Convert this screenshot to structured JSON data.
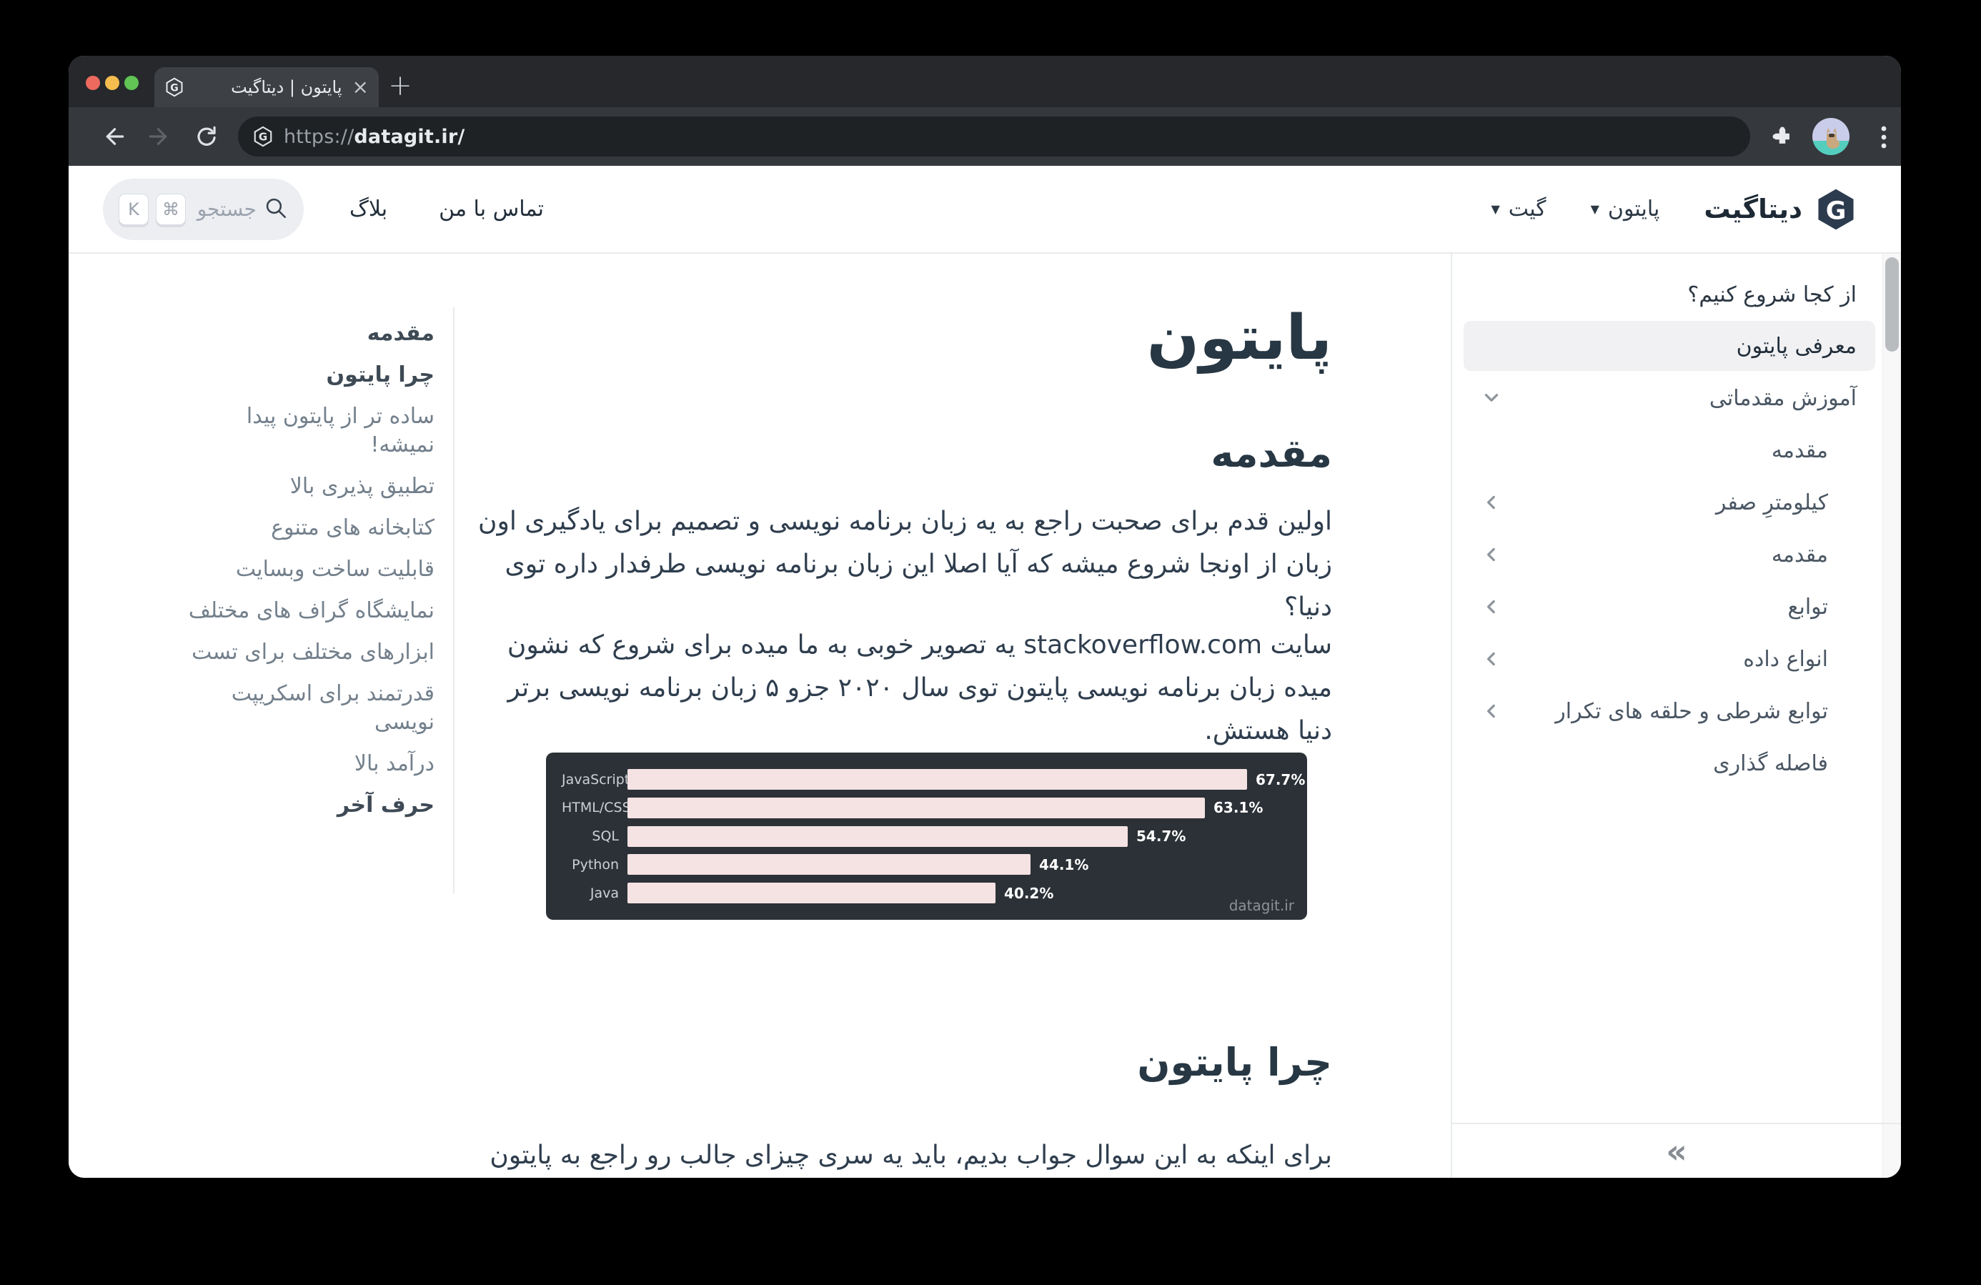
{
  "browser": {
    "tab_title": "پایتون | دیتاگیت",
    "close_tab": "×",
    "new_tab": "+",
    "url_scheme": "https://",
    "url_host": "datagit.ir/"
  },
  "header": {
    "brand": "دیتاگیت",
    "nav_python": "پایتون",
    "nav_git": "گیت",
    "nav_contact": "تماس با من",
    "nav_blog": "بلاگ",
    "search_placeholder": "جستجو",
    "kbd_cmd": "⌘",
    "kbd_k": "K"
  },
  "sidebar": {
    "title": "از کجا شروع کنیم؟",
    "items": [
      {
        "label": "معرفی پایتون",
        "state": "active"
      },
      {
        "label": "آموزش مقدماتی",
        "chevron": "down"
      },
      {
        "label": "مقدمه",
        "indent": true
      },
      {
        "label": "کیلومترِ صفر",
        "indent": true,
        "chevron": "left"
      },
      {
        "label": "مقدمه",
        "indent": true,
        "chevron": "left"
      },
      {
        "label": "توابع",
        "indent": true,
        "chevron": "left"
      },
      {
        "label": "انواع داده",
        "indent": true,
        "chevron": "left"
      },
      {
        "label": "توابع شرطی و حلقه های تکرار",
        "indent": true,
        "chevron": "left"
      },
      {
        "label": "فاصله گذاری",
        "indent": true
      }
    ],
    "collapse": "»"
  },
  "toc": {
    "items": [
      {
        "label": "مقدمه",
        "bold": true
      },
      {
        "label": "چرا پایتون",
        "bold": true
      },
      {
        "label": "ساده تر از پایتون پیدا نمیشه!"
      },
      {
        "label": "تطبیق پذیری بالا"
      },
      {
        "label": "کتابخانه های متنوع"
      },
      {
        "label": "قابلیت ساخت وبسایت"
      },
      {
        "label": "نمایشگاه گراف های مختلف"
      },
      {
        "label": "ابزارهای مختلف برای تست"
      },
      {
        "label": "قدرتمند برای اسکریپت نویسی"
      },
      {
        "label": "درآمد بالا"
      },
      {
        "label": "حرف آخر",
        "bold": true
      }
    ]
  },
  "main": {
    "title": "پایتون",
    "h2_intro": "مقدمه",
    "p1": "اولین قدم برای صحبت راجع به یه زبان برنامه نویسی و تصمیم برای یادگیری اون زبان از اونجا شروع میشه که آیا اصلا این زبان برنامه نویسی طرفدار داره توی دنیا؟",
    "p2": "سایت stackoverflow.com یه تصویر خوبی به ما میده برای شروع که نشون میده زبان برنامه نویسی پایتون توی سال ۲۰۲۰ جزو ۵ زبان برنامه نویسی برتر دنیا هستش.",
    "h2_why": "چرا پایتون",
    "p3": "برای اینکه به این سوال جواب بدیم، باید یه سری چیزای جالب رو راجع به پایتون بدونیم."
  },
  "chart_data": {
    "type": "bar",
    "orientation": "horizontal",
    "categories": [
      "JavaScript",
      "HTML/CSS",
      "SQL",
      "Python",
      "Java"
    ],
    "values": [
      67.7,
      63.1,
      54.7,
      44.1,
      40.2
    ],
    "unit": "%",
    "xlim": [
      0,
      75
    ],
    "title": "",
    "xlabel": "",
    "ylabel": "",
    "legend": false,
    "grid": false,
    "watermark": "datagit.ir",
    "bar_color": "#f5e2e3",
    "background": "#2c3137"
  },
  "colors": {
    "traffic_red": "#ee6a5f",
    "traffic_yellow": "#f5bd4f",
    "traffic_green": "#61c454",
    "chrome_bg": "#26282c",
    "toolbar_bg": "#35383c",
    "urlbar_bg": "#1f2225",
    "accent_dark": "#273743",
    "highlight": "#f1f1f3",
    "border": "#e8eaec",
    "chart_bg": "#2c3137",
    "bar": "#f5e2e3"
  }
}
